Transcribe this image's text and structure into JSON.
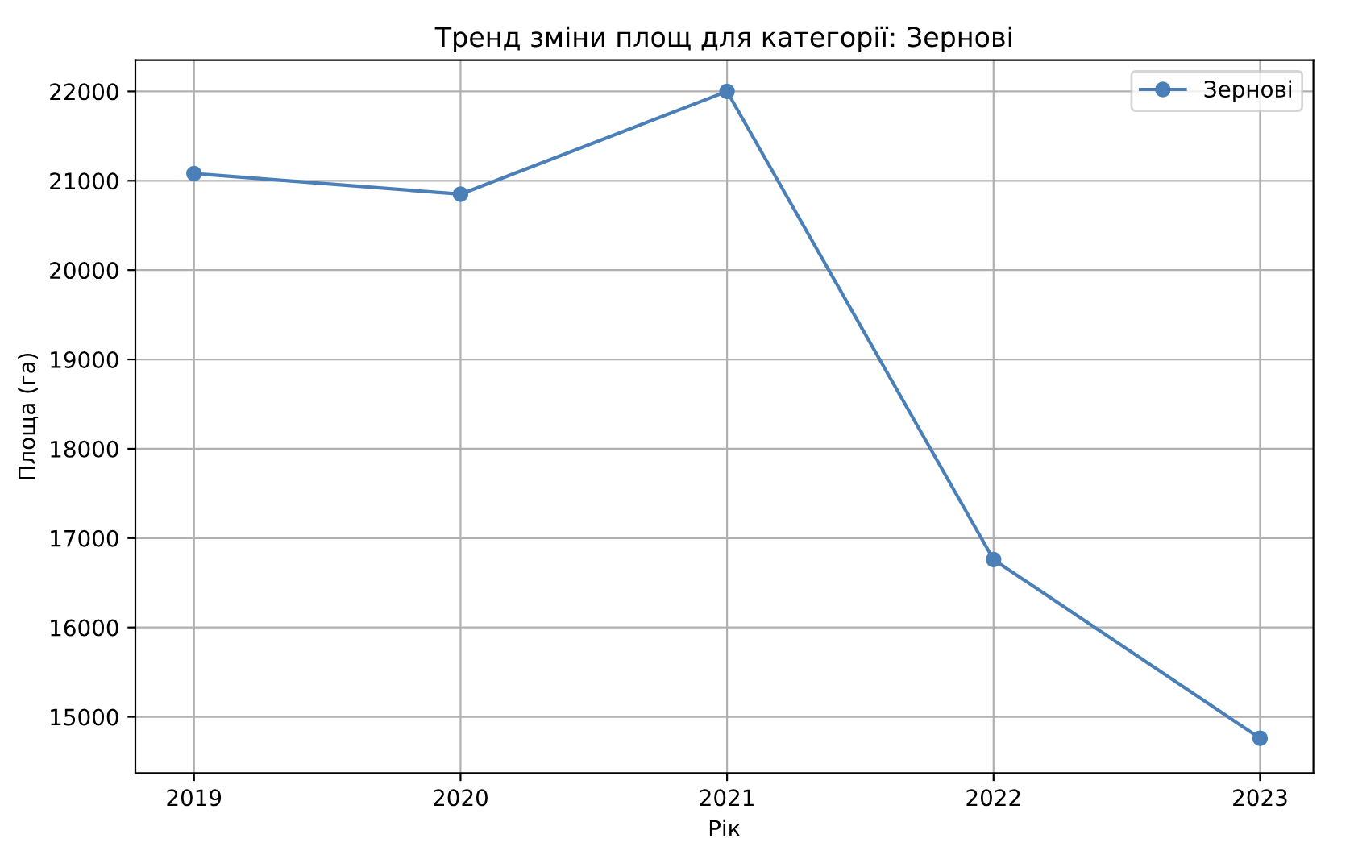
{
  "chart_data": {
    "type": "line",
    "title": "Тренд зміни площ для категорії: Зернові",
    "xlabel": "Рік",
    "ylabel": "Площа (га)",
    "x": [
      2019,
      2020,
      2021,
      2022,
      2023
    ],
    "series": [
      {
        "name": "Зернові",
        "color": "#4a7fb8",
        "values": [
          21080,
          20850,
          22000,
          16760,
          14760
        ]
      }
    ],
    "xlim": [
      2018.78,
      2023.2
    ],
    "xticks": [
      2019,
      2020,
      2021,
      2022,
      2023
    ],
    "ylim": [
      14370,
      22350
    ],
    "yticks": [
      15000,
      16000,
      17000,
      18000,
      19000,
      20000,
      21000,
      22000
    ],
    "grid": true,
    "legend": "top right",
    "marker": "circle",
    "line_style": "solid"
  }
}
